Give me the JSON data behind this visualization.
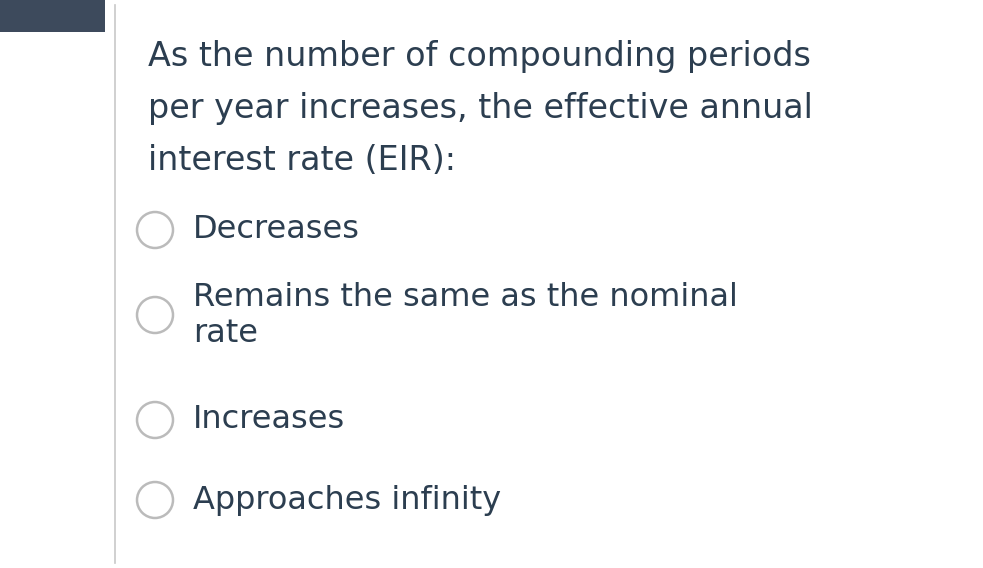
{
  "background_color": "#ffffff",
  "left_bar_color": "#3d4a5c",
  "vertical_line_color": "#c8c8c8",
  "question_text_lines": [
    "As the number of compounding periods",
    "per year increases, the effective annual",
    "interest rate (EIR):"
  ],
  "options": [
    [
      "Decreases"
    ],
    [
      "Remains the same as the nominal",
      "rate"
    ],
    [
      "Increases"
    ],
    [
      "Approaches infinity"
    ]
  ],
  "text_color": "#2c3e50",
  "circle_edge_color": "#bbbbbb",
  "circle_face_color": "#ffffff",
  "question_fontsize": 24,
  "option_fontsize": 23,
  "fig_width": 9.83,
  "fig_height": 5.68,
  "dpi": 100
}
